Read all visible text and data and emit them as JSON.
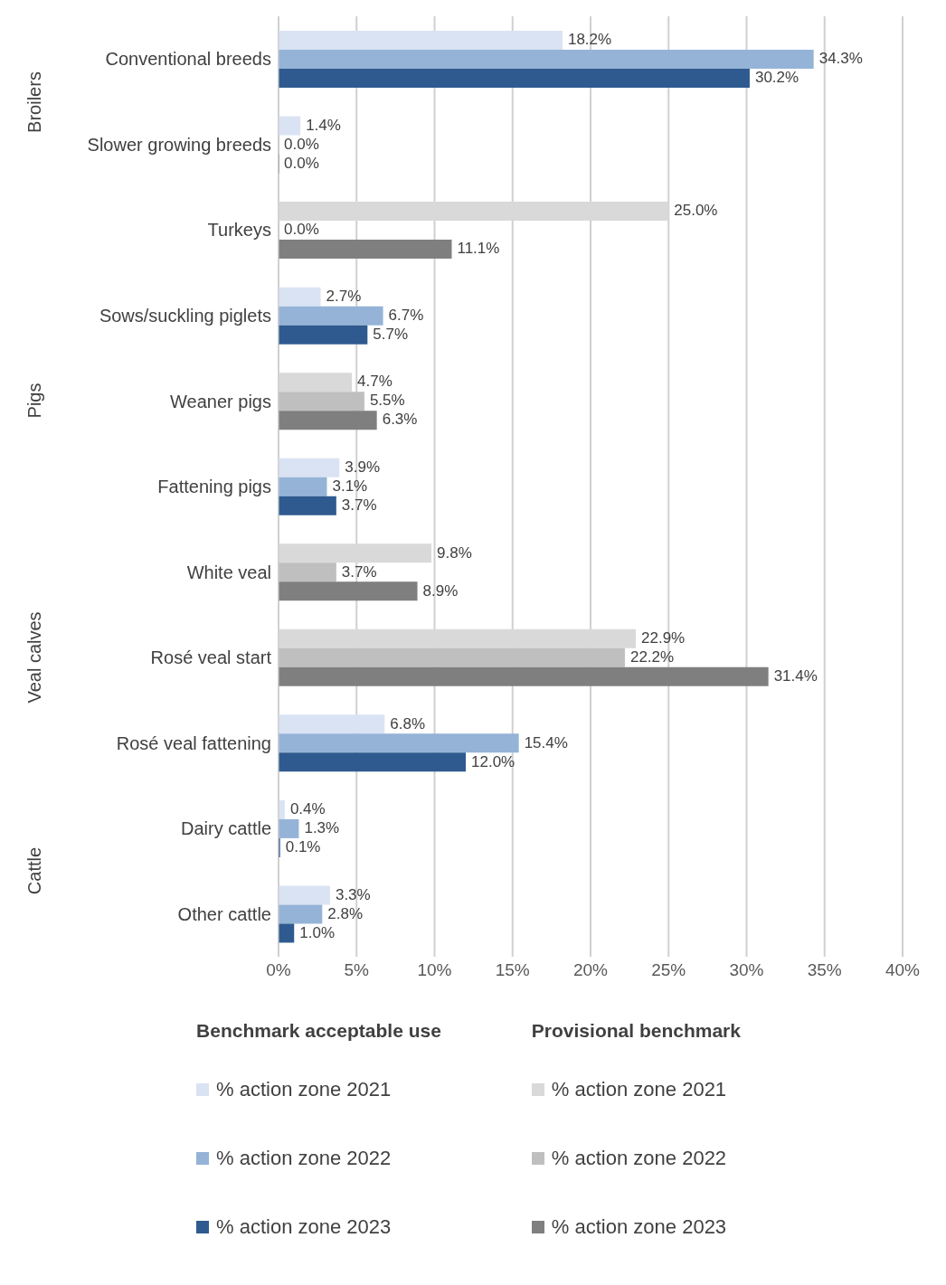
{
  "chart_data": {
    "type": "bar",
    "orientation": "horizontal",
    "legend": "bottom",
    "grid": "x",
    "legend_title": [
      "Benchmark acceptable use",
      "Provisional benchmark"
    ],
    "categories": [
      "Conventional breeds",
      "Slower growing breeds",
      "Turkeys",
      "Sows/suckling piglets",
      "Weaner pigs",
      "Fattening pigs",
      "White veal",
      "Rosé veal start",
      "Rosé veal fattening",
      "Dairy cattle",
      "Other cattle"
    ],
    "xlim": [
      0,
      40
    ],
    "xticks": [
      {
        "value": 0,
        "label": "0%"
      },
      {
        "value": 5,
        "label": "5%"
      },
      {
        "value": 10,
        "label": "10%"
      },
      {
        "value": 15,
        "label": "15%"
      },
      {
        "value": 20,
        "label": "20%"
      },
      {
        "value": 25,
        "label": "25%"
      },
      {
        "value": 30,
        "label": "30%"
      },
      {
        "value": 35,
        "label": "35%"
      },
      {
        "value": 40,
        "label": "40%"
      }
    ],
    "annotations": [
      "Broilers",
      "Pigs",
      "Veal calves",
      "Cattle"
    ],
    "series": [
      {
        "name": "% action zone 2021",
        "color": "#dae3f3",
        "values": [
          18.2,
          1.4,
          null,
          2.7,
          null,
          3.9,
          null,
          null,
          6.8,
          0.4,
          3.3
        ],
        "value_labels": [
          "18.2%",
          "1.4%",
          null,
          "2.7%",
          null,
          "3.9%",
          null,
          null,
          "6.8%",
          "0.4%",
          "3.3%"
        ]
      },
      {
        "name": "% action zone 2022",
        "color": "#95b3d7",
        "values": [
          34.3,
          0.0,
          null,
          6.7,
          null,
          3.1,
          null,
          null,
          15.4,
          1.3,
          2.8
        ],
        "value_labels": [
          "34.3%",
          "0.0%",
          null,
          "6.7%",
          null,
          "3.1%",
          null,
          null,
          "15.4%",
          "1.3%",
          "2.8%"
        ]
      },
      {
        "name": "% action zone 2023",
        "color": "#2f5a8f",
        "values": [
          30.2,
          0.0,
          null,
          5.7,
          null,
          3.7,
          null,
          null,
          12.0,
          0.1,
          1.0
        ],
        "value_labels": [
          "30.2%",
          "0.0%",
          null,
          "5.7%",
          null,
          "3.7%",
          null,
          null,
          "12.0%",
          "0.1%",
          "1.0%"
        ]
      },
      {
        "name": "% action zone 2021",
        "color": "#d9d9d9",
        "values": [
          null,
          null,
          25.0,
          null,
          4.7,
          null,
          9.8,
          22.9,
          null,
          null,
          null
        ],
        "value_labels": [
          null,
          null,
          "25.0%",
          null,
          "4.7%",
          null,
          "9.8%",
          "22.9%",
          null,
          null,
          null
        ]
      },
      {
        "name": "% action zone 2022",
        "color": "#bfbfbf",
        "values": [
          null,
          null,
          0.0,
          null,
          5.5,
          null,
          3.7,
          22.2,
          null,
          null,
          null
        ],
        "value_labels": [
          null,
          null,
          "0.0%",
          null,
          "5.5%",
          null,
          "3.7%",
          "22.2%",
          null,
          null,
          null
        ]
      },
      {
        "name": "% action zone 2023",
        "color": "#7f7f7f",
        "values": [
          null,
          null,
          11.1,
          null,
          6.3,
          null,
          8.9,
          31.4,
          null,
          null,
          null
        ],
        "value_labels": [
          null,
          null,
          "11.1%",
          null,
          "6.3%",
          null,
          "8.9%",
          "31.4%",
          null,
          null,
          null
        ]
      }
    ]
  }
}
